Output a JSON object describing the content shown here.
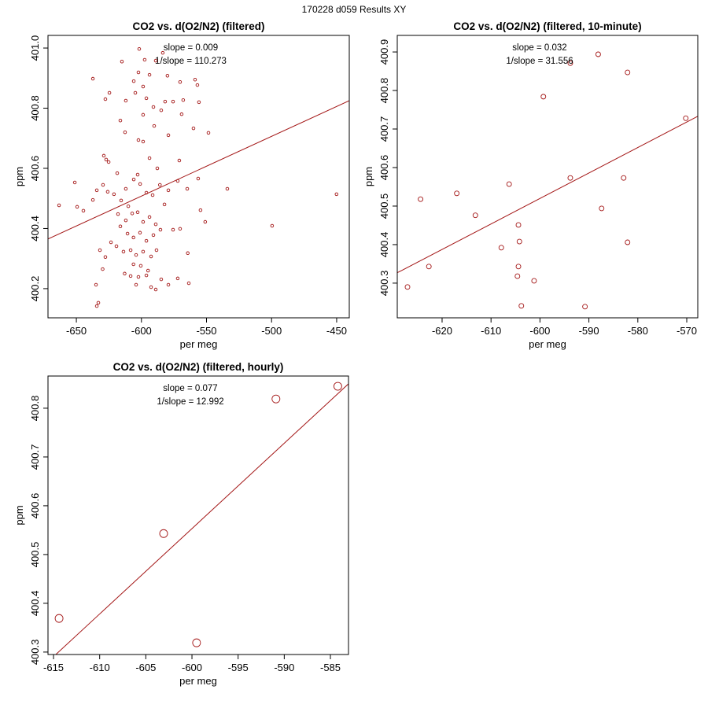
{
  "title": "170228   d059   Results XY",
  "chart_data": [
    {
      "type": "scatter",
      "title": "CO2 vs. d(O2/N2) (filtered)",
      "x_label": "per meg",
      "y_label": "ppm",
      "annotations": [
        "slope = 0.009",
        "1/slope = 110.273"
      ],
      "color": "#a31515",
      "xlim": [
        -671.8,
        -440.3
      ],
      "ylim": [
        400.103,
        401.042
      ],
      "xticks": [
        -650,
        -600,
        -550,
        -500,
        -450
      ],
      "yticks": [
        400.2,
        400.4,
        400.6,
        400.8,
        {
          "value": 401,
          "label": "401.0"
        }
      ],
      "fit_line": {
        "x": [
          -671.8,
          -440.3
        ],
        "y": [
          400.365,
          400.825
        ]
      },
      "x": [
        -601.7,
        -615.0,
        -637.3,
        -624.6,
        -627.7,
        -597.5,
        -589.0,
        -583.6,
        -602.3,
        -598.7,
        -593.8,
        -580.0,
        -558.8,
        -557.0,
        -570.3,
        -605.9,
        -604.7,
        -596.2,
        -612.0,
        -581.8,
        -575.7,
        -567.9,
        -555.8,
        -590.8,
        -584.8,
        -598.7,
        -616.2,
        -569.1,
        -560.0,
        -548.5,
        -612.6,
        -590.2,
        -579.3,
        -602.3,
        -598.7,
        -628.9,
        -627.1,
        -625.2,
        -593.8,
        -587.8,
        -570.9,
        -602.9,
        -618.6,
        -651.2,
        -663.3,
        -649.4,
        -644.6,
        -637.3,
        -634.3,
        -629.5,
        -625.9,
        -621.1,
        -615.6,
        -612.0,
        -610.1,
        -605.9,
        -601.0,
        -596.2,
        -591.4,
        -585.8,
        -582.3,
        -579.3,
        -572.1,
        -564.8,
        -556.4,
        -534.0,
        -450.1,
        -554.6,
        -551.0,
        -499.6,
        -618.0,
        -612.0,
        -607.1,
        -602.9,
        -598.7,
        -593.8,
        -589.0,
        -585.4,
        -616.2,
        -610.7,
        -606.1,
        -601.1,
        -596.2,
        -590.8,
        -575.7,
        -570.3,
        -623.4,
        -619.2,
        -631.9,
        -613.8,
        -608.3,
        -604.1,
        -598.7,
        -592.6,
        -588.4,
        -564.4,
        -627.7,
        -606.1,
        -600.5,
        -594.9,
        -629.8,
        -612.9,
        -608.3,
        -602.3,
        -596.2,
        -584.8,
        -572.1,
        -563.6,
        -604.1,
        -592.6,
        -634.9,
        -633.1,
        -634.3,
        -579.3,
        -589.0
      ],
      "y": [
        400.997,
        400.955,
        400.898,
        400.851,
        400.83,
        400.961,
        400.958,
        400.984,
        400.919,
        400.872,
        400.911,
        400.908,
        400.895,
        400.877,
        400.887,
        400.89,
        400.851,
        400.833,
        400.825,
        400.822,
        400.822,
        400.827,
        400.82,
        400.804,
        400.793,
        400.778,
        400.759,
        400.78,
        400.733,
        400.718,
        400.72,
        400.741,
        400.71,
        400.694,
        400.689,
        400.642,
        400.629,
        400.621,
        400.634,
        400.6,
        400.626,
        400.579,
        400.584,
        400.553,
        400.477,
        400.472,
        400.459,
        400.495,
        400.527,
        400.545,
        400.522,
        400.514,
        400.493,
        400.532,
        400.474,
        400.563,
        400.548,
        400.519,
        400.511,
        400.545,
        400.48,
        400.527,
        400.558,
        400.532,
        400.566,
        400.532,
        400.514,
        400.461,
        400.422,
        400.409,
        400.448,
        400.427,
        400.45,
        400.454,
        400.422,
        400.438,
        400.414,
        400.396,
        400.407,
        400.383,
        400.37,
        400.386,
        400.359,
        400.378,
        400.396,
        400.399,
        400.354,
        400.341,
        400.328,
        400.323,
        400.328,
        400.312,
        400.323,
        400.307,
        400.328,
        400.318,
        400.305,
        400.281,
        400.276,
        400.26,
        400.265,
        400.25,
        400.242,
        400.239,
        400.244,
        400.231,
        400.234,
        400.218,
        400.213,
        400.205,
        400.213,
        400.153,
        400.142,
        400.213,
        400.197
      ]
    },
    {
      "type": "scatter",
      "title": "CO2 vs. d(O2/N2) (filtered, 10-minute)",
      "x_label": "per meg",
      "y_label": "ppm",
      "annotations": [
        "slope = 0.032",
        "1/slope = 31.556"
      ],
      "color": "#a31515",
      "xlim": [
        -629.16,
        -567.75
      ],
      "ylim": [
        400.21,
        400.943
      ],
      "xticks": [
        -620,
        -610,
        -600,
        -590,
        -580,
        -570
      ],
      "yticks": [
        400.3,
        400.4,
        400.5,
        400.6,
        400.7,
        400.8,
        400.9
      ],
      "fit_line": {
        "x": [
          -629.16,
          -567.75
        ],
        "y": [
          400.327,
          400.733
        ]
      },
      "x": [
        -627.07,
        -624.4,
        -622.7,
        -617.0,
        -613.2,
        -607.9,
        -606.3,
        -604.4,
        -604.2,
        -604.4,
        -604.6,
        -603.8,
        -601.2,
        -599.3,
        -593.8,
        -593.8,
        -590.8,
        -588.1,
        -587.4,
        -582.1,
        -582.9,
        -582.1,
        -570.2
      ],
      "y": [
        400.29,
        400.518,
        400.343,
        400.533,
        400.476,
        400.392,
        400.557,
        400.451,
        400.408,
        400.343,
        400.318,
        400.241,
        400.306,
        400.784,
        400.871,
        400.573,
        400.239,
        400.894,
        400.494,
        400.847,
        400.573,
        400.406,
        400.728
      ]
    },
    {
      "type": "scatter",
      "title": "CO2 vs. d(O2/N2) (filtered, hourly)",
      "x_label": "per meg",
      "y_label": "ppm",
      "annotations": [
        "slope = 0.077",
        "1/slope = 12.992"
      ],
      "color": "#a31515",
      "xlim": [
        -615.6,
        -583.04
      ],
      "ylim": [
        400.295,
        400.866
      ],
      "xticks": [
        -615,
        -610,
        -605,
        -600,
        -595,
        -590,
        -585
      ],
      "yticks": [
        400.3,
        400.4,
        400.5,
        400.6,
        400.7,
        400.8
      ],
      "fit_line": {
        "x": [
          -614.75,
          -583.04
        ],
        "y": [
          400.295,
          400.85
        ]
      },
      "x": [
        -614.4,
        -603.07,
        -599.5,
        -590.9,
        -584.2
      ],
      "y": [
        400.369,
        400.543,
        400.319,
        400.819,
        400.845
      ]
    }
  ]
}
